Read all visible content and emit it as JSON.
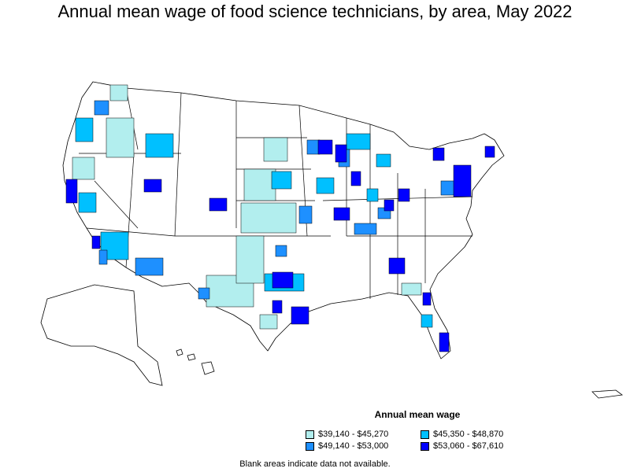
{
  "title": "Annual mean wage of food science technicians, by area, May 2022",
  "legend": {
    "title": "Annual mean wage",
    "items": [
      {
        "label": "$39,140 - $45,270",
        "color": "#b2eeee"
      },
      {
        "label": "$45,350 - $48,870",
        "color": "#00c0ff"
      },
      {
        "label": "$49,140 - $53,000",
        "color": "#1e90ff"
      },
      {
        "label": "$53,060 - $67,610",
        "color": "#0000ff"
      }
    ]
  },
  "note": "Blank areas indicate data not available.",
  "colors": {
    "boundary": "#000000",
    "no_data": "#ffffff"
  }
}
